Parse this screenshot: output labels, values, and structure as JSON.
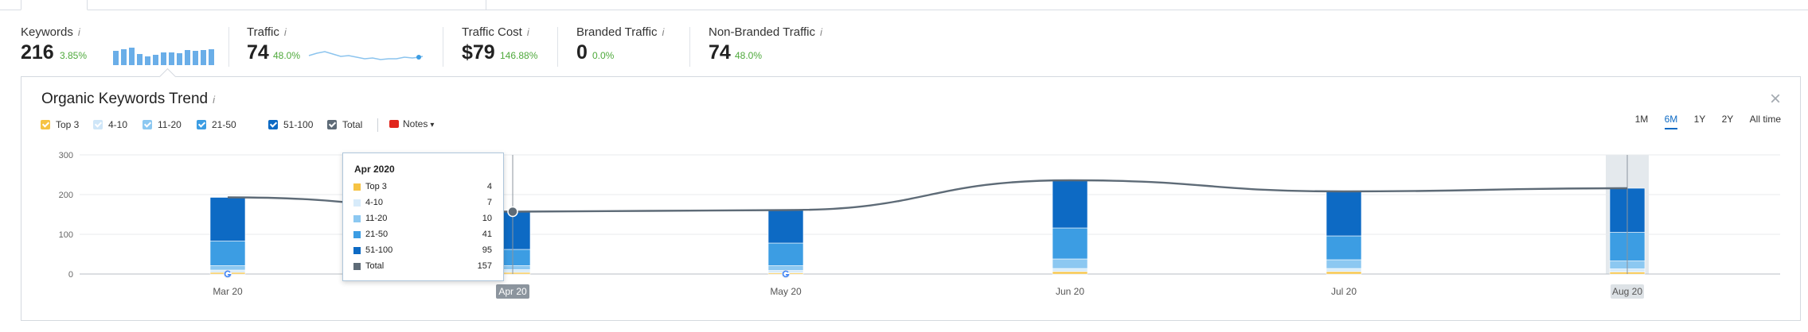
{
  "metrics": [
    {
      "label": "Keywords",
      "value": "216",
      "change": "3.85%"
    },
    {
      "label": "Traffic",
      "value": "74",
      "change": "48.0%"
    },
    {
      "label": "Traffic Cost",
      "value": "$79",
      "change": "146.88%"
    },
    {
      "label": "Branded Traffic",
      "value": "0",
      "change": "0.0%"
    },
    {
      "label": "Non-Branded Traffic",
      "value": "74",
      "change": "48.0%"
    }
  ],
  "info_icon": "i",
  "keywords_minibar_values": [
    170,
    190,
    205,
    130,
    105,
    120,
    145,
    150,
    140,
    180,
    165,
    175,
    185
  ],
  "panel": {
    "title": "Organic Keywords Trend",
    "close_label": "×",
    "notes_label": "Notes"
  },
  "legend": [
    {
      "label": "Top 3",
      "color": "#f6c344"
    },
    {
      "label": "4-10",
      "color": "#d7ebfa"
    },
    {
      "label": "11-20",
      "color": "#8cc8f1"
    },
    {
      "label": "21-50",
      "color": "#3c9de3"
    },
    {
      "label": "51-100",
      "color": "#0d6ac4"
    },
    {
      "label": "Total",
      "color": "#5e6b77"
    }
  ],
  "ranges": [
    {
      "label": "1M",
      "active": false
    },
    {
      "label": "6M",
      "active": true
    },
    {
      "label": "1Y",
      "active": false
    },
    {
      "label": "2Y",
      "active": false
    },
    {
      "label": "All time",
      "active": false
    }
  ],
  "chart_data": {
    "type": "bar",
    "categories": [
      "Mar 20",
      "Apr 20",
      "May 20",
      "Jun 20",
      "Jul 20",
      "Aug 20"
    ],
    "yticks": [
      0,
      100,
      200,
      300
    ],
    "ylim": [
      0,
      300
    ],
    "series": [
      {
        "name": "Top 3",
        "values": [
          4,
          4,
          3,
          6,
          6,
          5
        ]
      },
      {
        "name": "4-10",
        "values": [
          6,
          7,
          6,
          8,
          8,
          8
        ]
      },
      {
        "name": "11-20",
        "values": [
          11,
          10,
          12,
          24,
          22,
          20
        ]
      },
      {
        "name": "21-50",
        "values": [
          62,
          41,
          57,
          78,
          60,
          72
        ]
      },
      {
        "name": "51-100",
        "values": [
          110,
          95,
          83,
          120,
          112,
          111
        ]
      }
    ],
    "total": [
      193,
      157,
      161,
      236,
      208,
      216
    ],
    "highlighted_categories": [
      "Apr 20",
      "Aug 20"
    ]
  },
  "tooltip": {
    "title": "Apr 2020",
    "rows": [
      {
        "label": "Top 3",
        "value": "4",
        "color": "#f6c344"
      },
      {
        "label": "4-10",
        "value": "7",
        "color": "#d7ebfa"
      },
      {
        "label": "11-20",
        "value": "10",
        "color": "#8cc8f1"
      },
      {
        "label": "21-50",
        "value": "41",
        "color": "#3c9de3"
      },
      {
        "label": "51-100",
        "value": "95",
        "color": "#0d6ac4"
      },
      {
        "label": "Total",
        "value": "157",
        "color": "#5e6b77"
      }
    ]
  }
}
